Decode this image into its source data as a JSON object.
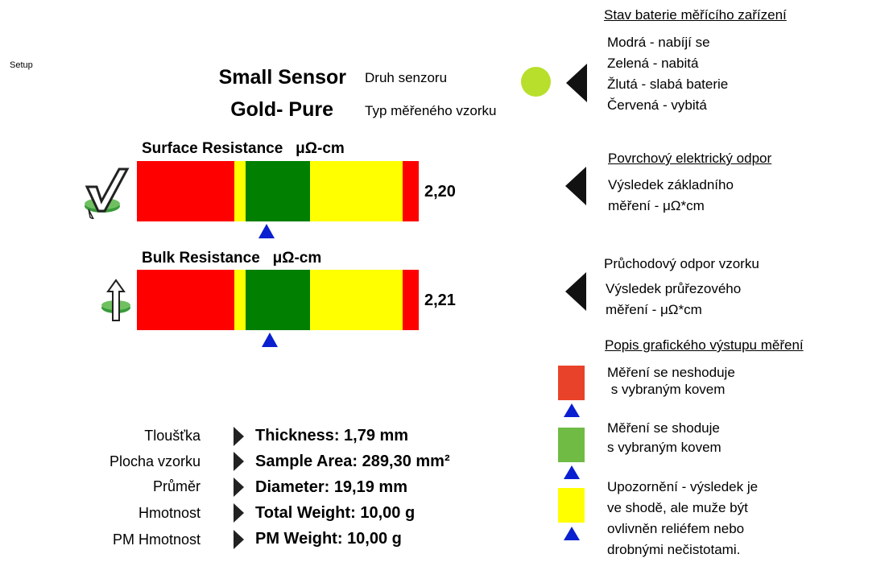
{
  "setup_label": "Setup",
  "sensor": {
    "name": "Small Sensor",
    "name_desc": "Druh senzoru",
    "sample": "Gold- Pure",
    "sample_desc": "Typ měřeného vzorku"
  },
  "battery": {
    "status_color": "#b7df2b",
    "title": "Stav baterie měřícího zařízení",
    "lines": [
      "Modrá - nabíjí se",
      "Zelená - nabitá",
      "Žlutá - slabá baterie",
      "Červená - vybitá"
    ]
  },
  "surface": {
    "heading": "Surface Resistance   μΩ-cm",
    "value": "2,20",
    "icon": "checkmark-icon",
    "note_title": "Povrchový elektrický odpor",
    "note_lines": [
      "Výsledek základního",
      "měření - μΩ*cm"
    ]
  },
  "bulk": {
    "heading": "Bulk Resistance   μΩ-cm",
    "value": "2,21",
    "icon": "arrow-up-icon",
    "note_title": "Průchodový odpor vzorku",
    "note_lines": [
      "Výsledek průřezového",
      "měření - μΩ*cm"
    ]
  },
  "legend": {
    "title": "Popis grafického výstupu měření",
    "items": [
      {
        "color": "#e8432a",
        "text": [
          "Měření se neshoduje",
          " s vybraným kovem"
        ]
      },
      {
        "color": "#6fbb44",
        "text": [
          "Měření se shoduje",
          "s vybraným kovem"
        ]
      },
      {
        "color": "#ffff00",
        "text": [
          "Upozornění - výsledek je",
          "ve shodě, ale muže být",
          "ovlivněn reliéfem nebo",
          "drobnými nečistotami."
        ]
      }
    ]
  },
  "measurements": [
    {
      "cz": "Tloušťka",
      "en": "Thickness: 1,79 mm"
    },
    {
      "cz": "Plocha vzorku",
      "en": "Sample Area: 289,30 mm²"
    },
    {
      "cz": "Průměr",
      "en": "Diameter: 19,19 mm"
    },
    {
      "cz": "Hmotnost",
      "en": "Total Weight: 10,00 g"
    },
    {
      "cz": "PM Hmotnost",
      "en": "PM Weight: 10,00 g"
    }
  ],
  "colors": {
    "red": "#ff0000",
    "yellow": "#ffff00",
    "green": "#007f00",
    "marker": "#0a1fd0"
  }
}
